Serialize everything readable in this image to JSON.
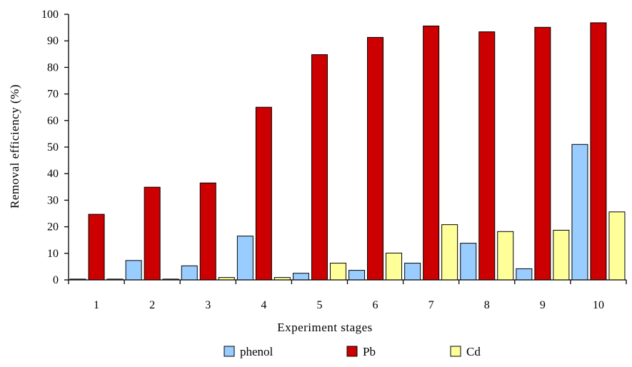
{
  "chart_data": {
    "type": "bar",
    "categories": [
      "1",
      "2",
      "3",
      "4",
      "5",
      "6",
      "7",
      "8",
      "9",
      "10"
    ],
    "series": [
      {
        "name": "phenol",
        "color": "#99ccff",
        "values": [
          0.3,
          7.3,
          5.3,
          16.5,
          2.5,
          3.6,
          6.3,
          13.8,
          4.2,
          51
        ]
      },
      {
        "name": "Pb",
        "color": "#cc0000",
        "values": [
          24.7,
          34.9,
          36.5,
          65,
          84.8,
          91.3,
          95.6,
          93.4,
          95.1,
          96.8
        ]
      },
      {
        "name": "Cd",
        "color": "#ffff99",
        "values": [
          0.3,
          0.3,
          0.9,
          0.9,
          6.3,
          10.1,
          20.8,
          18.2,
          18.7,
          25.6
        ]
      }
    ],
    "xlabel": "Experiment stages",
    "ylabel": "Removal efficiency (%)",
    "ylim": [
      0,
      100
    ],
    "yticks": [
      "0",
      "10",
      "20",
      "30",
      "40",
      "50",
      "60",
      "70",
      "80",
      "90",
      "100"
    ],
    "grid": false,
    "legend_position": "bottom-center"
  }
}
